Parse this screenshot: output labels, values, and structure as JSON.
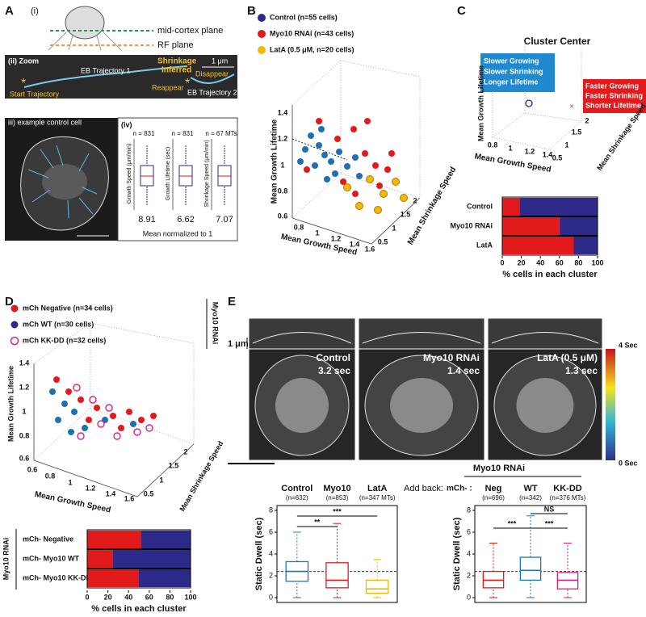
{
  "panel_a": {
    "letter": "A",
    "sub_i": "(i)",
    "mid_cortex": "mid-cortex plane",
    "rf_plane": "RF plane",
    "zoom": "(ii) Zoom",
    "scale": "1 μm",
    "eb1": "EB Trajectory 1",
    "eb2": "EB Trajectory 2",
    "shrinkage": [
      "Shrinkage",
      "Inferred"
    ],
    "disappear": "Disappear",
    "reappear": "Reappear",
    "start": "Start Trajectory",
    "cell": "iii) example control cell",
    "iv": "(iv)",
    "boxes": [
      {
        "n": "n = 831",
        "y_label": "Growth Speed (μm/min)",
        "mean": "8.91"
      },
      {
        "n": "n = 831",
        "y_label": "Growth Lifetime (sec)",
        "mean": "6.62"
      },
      {
        "n": "n = 67 MTs",
        "y_label": "Shrinkage Speed (μm/min)",
        "mean": "7.07"
      }
    ],
    "footer": "Mean  normalized to 1"
  },
  "panel_b": {
    "letter": "B",
    "legend": [
      "Control (n=55 cells)",
      "Myo10 RNAi (n=43 cells)",
      "LatA (0.5 μM, n=20 cells)"
    ],
    "y_label": "Mean Growth Lifetime",
    "x_label": "Mean Growth Speed",
    "z_label": "Mean Shrinkage Speed",
    "yticks": [
      1.4,
      1.2,
      1,
      0.8,
      0.6
    ],
    "xticks": [
      0.8,
      1,
      1.2,
      1.4,
      1.6
    ],
    "zticks": [
      0.5,
      1,
      1.5,
      2
    ]
  },
  "panel_c": {
    "letter": "C",
    "title": "Cluster Center",
    "blue_box": [
      "Slower Growing",
      "Slower Shrinking",
      "Longer Lifetime"
    ],
    "red_box": [
      "Faster Growing",
      "Faster Shrinking",
      "Shorter Lifetime"
    ],
    "y_label": "Mean Growth Lifetime",
    "x_label": "Mean Growth Speed",
    "z_label": "Mean Shrinkage Speed",
    "xticks": [
      0.8,
      1,
      1.2,
      1.4
    ],
    "zticks": [
      0.5,
      1,
      1.5,
      2
    ],
    "bars": {
      "categories": [
        "Control",
        "Myo10 RNAi",
        "LatA"
      ],
      "series": [
        {
          "color": "#e31a1c",
          "values": [
            18,
            60,
            75
          ]
        },
        {
          "color": "#2e2a8a",
          "values": [
            82,
            40,
            25
          ]
        }
      ],
      "xlim": [
        0,
        100
      ],
      "xticks": [
        0,
        20,
        40,
        60,
        80,
        100
      ],
      "x_label": "% cells in each cluster"
    }
  },
  "panel_d": {
    "letter": "D",
    "legend": [
      "mCh Negative (n=34 cells)",
      "mCh WT (n=30 cells)",
      "mCh KK-DD (n=32 cells)"
    ],
    "group": "Myo10 RNAi",
    "y_label": "Mean Growth Lifetime",
    "x_label": "Mean Growth Speed",
    "z_label": "Mean Shrinkage Speed",
    "yticks": [
      1.4,
      1.2,
      1,
      0.8,
      0.6
    ],
    "xticks": [
      0.6,
      0.8,
      1,
      1.2,
      1.4,
      1.6
    ],
    "zticks": [
      0.5,
      1,
      1.5,
      2
    ],
    "bars": {
      "group": "Myo10 RNAi",
      "categories": [
        "mCh- Negative",
        "mCh- Myo10 WT",
        "mCh- Myo10 KK-DD"
      ],
      "series": [
        {
          "color": "#e31a1c",
          "values": [
            52,
            25,
            50
          ]
        },
        {
          "color": "#2e2a8a",
          "values": [
            48,
            75,
            50
          ]
        }
      ],
      "xlim": [
        0,
        100
      ],
      "xticks": [
        0,
        20,
        40,
        60,
        80,
        100
      ],
      "x_label": "% cells in each cluster"
    }
  },
  "panel_e": {
    "letter": "E",
    "scale": "1 μm",
    "colorbar": [
      "4 Sec",
      "0 Sec"
    ],
    "images": [
      {
        "label": "Control",
        "time": "3.2 sec"
      },
      {
        "label": "Myo10 RNAi",
        "time": "1.4 sec"
      },
      {
        "label": "LatA (0.5 μM)",
        "time": "1.3 sec"
      }
    ],
    "left": {
      "y_label": "Static Dwell (sec)",
      "ylim": [
        0,
        8
      ],
      "yticks": [
        0,
        2,
        4,
        6,
        8
      ],
      "reference": 2.4,
      "boxes": [
        {
          "label": "Control",
          "n": "(n=632)",
          "color": "#1f77b4",
          "low": 0,
          "q1": 1.5,
          "median": 2.4,
          "q3": 3.3,
          "high": 6
        },
        {
          "label": "Myo10",
          "n": "(n=853)",
          "color": "#e31a1c",
          "low": 0,
          "q1": 0.9,
          "median": 1.6,
          "q3": 3.2,
          "high": 6.8
        },
        {
          "label": "LatA",
          "n": "(n=347 MTs)",
          "color": "#f5b800",
          "low": 0,
          "q1": 0.4,
          "median": 0.8,
          "q3": 1.6,
          "high": 3.5
        }
      ],
      "significance": [
        "**",
        "***"
      ]
    },
    "right": {
      "title": "Myo10 RNAi",
      "add_back": "Add back:",
      "prefix": "mCh- :",
      "y_label": "Static Dwell (sec)",
      "ylim": [
        0,
        8
      ],
      "yticks": [
        0,
        2,
        4,
        6,
        8
      ],
      "reference": 2.4,
      "boxes": [
        {
          "label": "Neg",
          "n": "(n=696)",
          "color": "#e31a1c",
          "low": 0,
          "q1": 0.9,
          "median": 1.6,
          "q3": 2.4,
          "high": 5
        },
        {
          "label": "WT",
          "n": "(n=342)",
          "color": "#1f77b4",
          "low": 0,
          "q1": 1.6,
          "median": 2.5,
          "q3": 3.7,
          "high": 7.5
        },
        {
          "label": "KK-DD",
          "n": "(n=376 MTs)",
          "color": "#d6238a",
          "low": 0,
          "q1": 0.8,
          "median": 1.6,
          "q3": 2.3,
          "high": 5
        }
      ],
      "significance": [
        "NS",
        "***",
        "***"
      ]
    }
  }
}
